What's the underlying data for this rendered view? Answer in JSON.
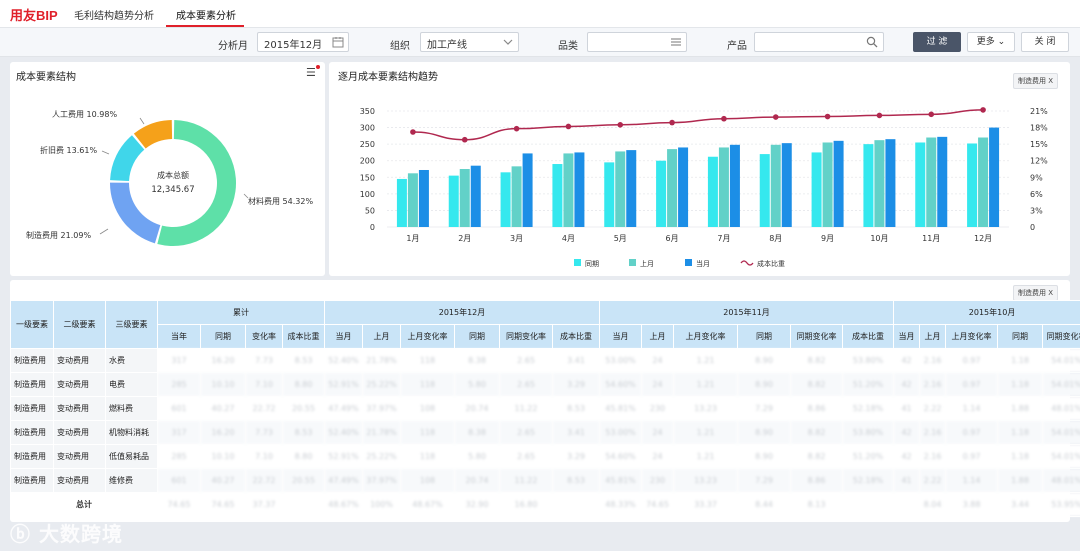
{
  "header": {
    "logo": "用友BIP",
    "tabs": [
      {
        "label": "毛利结构趋势分析"
      },
      {
        "label": "成本要素分析"
      }
    ]
  },
  "filters": {
    "period_label": "分析月",
    "period_value": "2015年12月",
    "org_label": "组织",
    "org_value": "加工产线",
    "category_label": "品类",
    "category_value": "",
    "product_label": "产品",
    "product_value": "",
    "filter_btn": "过 滤",
    "more_btn": "更多",
    "close_btn": "关 闭"
  },
  "donut": {
    "title": "成本要素结构",
    "center_title": "成本总额",
    "center_value": "12,345.67",
    "slices": [
      {
        "name": "材料费用",
        "pct": 54.32,
        "label": "材料费用  54.32%",
        "color": "#5ee0a8"
      },
      {
        "name": "制造费用",
        "pct": 21.09,
        "label": "制造费用  21.09%",
        "color": "#6fa3f2"
      },
      {
        "name": "折旧费",
        "pct": 13.61,
        "label": "折旧费  13.61%",
        "color": "#40d6ea"
      },
      {
        "name": "人工费用",
        "pct": 10.98,
        "label": "人工费用  10.98%",
        "color": "#f5a11a"
      }
    ]
  },
  "trend": {
    "title": "逐月成本要素结构趋势",
    "tag": "制造费用",
    "tag_close": "X"
  },
  "chart_data": {
    "type": "bar",
    "categories": [
      "1月",
      "2月",
      "3月",
      "4月",
      "5月",
      "6月",
      "7月",
      "8月",
      "9月",
      "10月",
      "11月",
      "12月"
    ],
    "series": [
      {
        "name": "同期",
        "color": "#35e8ee",
        "values": [
          145,
          155,
          165,
          190,
          195,
          200,
          212,
          220,
          225,
          250,
          255,
          252
        ]
      },
      {
        "name": "上月",
        "color": "#62d1c8",
        "values": [
          162,
          175,
          183,
          222,
          228,
          235,
          240,
          248,
          255,
          262,
          270,
          270
        ]
      },
      {
        "name": "当月",
        "color": "#1c8ee6",
        "values": [
          172,
          185,
          222,
          225,
          232,
          240,
          248,
          253,
          260,
          265,
          272,
          300
        ]
      },
      {
        "name": "成本比重",
        "color": "#b0284f",
        "type": "line",
        "values": [
          17.2,
          15.8,
          17.8,
          18.2,
          18.5,
          18.9,
          19.6,
          19.9,
          20.0,
          20.2,
          20.4,
          21.2
        ]
      }
    ],
    "y_left": {
      "min": 0,
      "max": 350,
      "ticks": [
        "0",
        "50",
        "100",
        "150",
        "200",
        "250",
        "300",
        "350"
      ]
    },
    "y_right": {
      "min": 0,
      "max": 21,
      "ticks": [
        "0",
        "3%",
        "6%",
        "9%",
        "12%",
        "15%",
        "18%",
        "21%"
      ]
    },
    "legend_position": "bottom"
  },
  "table": {
    "tag": "制造费用",
    "tag_close": "X",
    "dim_headers": [
      "一级要素",
      "二级要素",
      "三级要素"
    ],
    "groups": [
      {
        "label": "累计",
        "cols": [
          "当年",
          "同期",
          "变化率",
          "成本比重"
        ]
      },
      {
        "label": "2015年12月",
        "cols": [
          "当月",
          "上月",
          "上月变化率",
          "同期",
          "同期变化率",
          "成本比重"
        ]
      },
      {
        "label": "2015年11月",
        "cols": [
          "当月",
          "上月",
          "上月变化率",
          "同期",
          "同期变化率",
          "成本比重"
        ]
      },
      {
        "label": "2015年10月",
        "cols": [
          "当月",
          "上月",
          "上月变化率",
          "同期",
          "同期变化率"
        ]
      }
    ],
    "rows": [
      {
        "l1": "制造费用",
        "l2": "变动费用",
        "l3": "水费",
        "vals": [
          "317",
          "16.20",
          "7.73",
          "8.53",
          "52.40%",
          "21.78%",
          "118",
          "8.38",
          "2.65",
          "3.41",
          "53.00%",
          "24",
          "1.21",
          "8.90",
          "8.82",
          "53.80%",
          "42",
          "2.16",
          "0.97",
          "1.18",
          "54.01%"
        ]
      },
      {
        "l1": "制造费用",
        "l2": "变动费用",
        "l3": "电费",
        "vals": [
          "285",
          "10.10",
          "7.10",
          "8.80",
          "52.91%",
          "25.22%",
          "118",
          "5.80",
          "2.65",
          "3.29",
          "54.60%",
          "24",
          "1.21",
          "8.90",
          "8.82",
          "51.20%",
          "42",
          "2.16",
          "0.97",
          "1.18",
          "54.01%"
        ]
      },
      {
        "l1": "制造费用",
        "l2": "变动费用",
        "l3": "燃料费",
        "vals": [
          "601",
          "40.27",
          "22.72",
          "20.55",
          "47.49%",
          "37.97%",
          "108",
          "20.74",
          "11.22",
          "8.53",
          "45.81%",
          "230",
          "13.23",
          "7.29",
          "8.86",
          "52.18%",
          "41",
          "2.22",
          "1.14",
          "1.88",
          "48.01%"
        ]
      },
      {
        "l1": "制造费用",
        "l2": "变动费用",
        "l3": "机物料消耗",
        "vals": [
          "317",
          "16.20",
          "7.73",
          "8.53",
          "52.40%",
          "21.78%",
          "118",
          "8.38",
          "2.65",
          "3.41",
          "53.00%",
          "24",
          "1.21",
          "8.90",
          "8.82",
          "53.80%",
          "42",
          "2.16",
          "0.97",
          "1.18",
          "54.01%"
        ]
      },
      {
        "l1": "制造费用",
        "l2": "变动费用",
        "l3": "低值易耗品",
        "vals": [
          "285",
          "10.10",
          "7.10",
          "8.80",
          "52.91%",
          "25.22%",
          "118",
          "5.80",
          "2.65",
          "3.29",
          "54.60%",
          "24",
          "1.21",
          "8.90",
          "8.82",
          "51.20%",
          "42",
          "2.16",
          "0.97",
          "1.18",
          "54.01%"
        ]
      },
      {
        "l1": "制造费用",
        "l2": "变动费用",
        "l3": "维修费",
        "vals": [
          "601",
          "40.27",
          "22.72",
          "20.55",
          "47.49%",
          "37.97%",
          "108",
          "20.74",
          "11.22",
          "8.53",
          "45.81%",
          "230",
          "13.23",
          "7.29",
          "8.86",
          "52.18%",
          "41",
          "2.22",
          "1.14",
          "1.88",
          "48.01%"
        ]
      }
    ],
    "total": {
      "label": "总计",
      "vals": [
        "74.65",
        "74.65",
        "37.37",
        "",
        "48.67%",
        "100%",
        "48.67%",
        "32.90",
        "16.80",
        "",
        "48.33%",
        "74.65",
        "33.37",
        "8.44",
        "8.13",
        "",
        "",
        "8.04",
        "3.88",
        "3.44",
        "53.95%"
      ]
    }
  },
  "watermark": "大数跨境"
}
